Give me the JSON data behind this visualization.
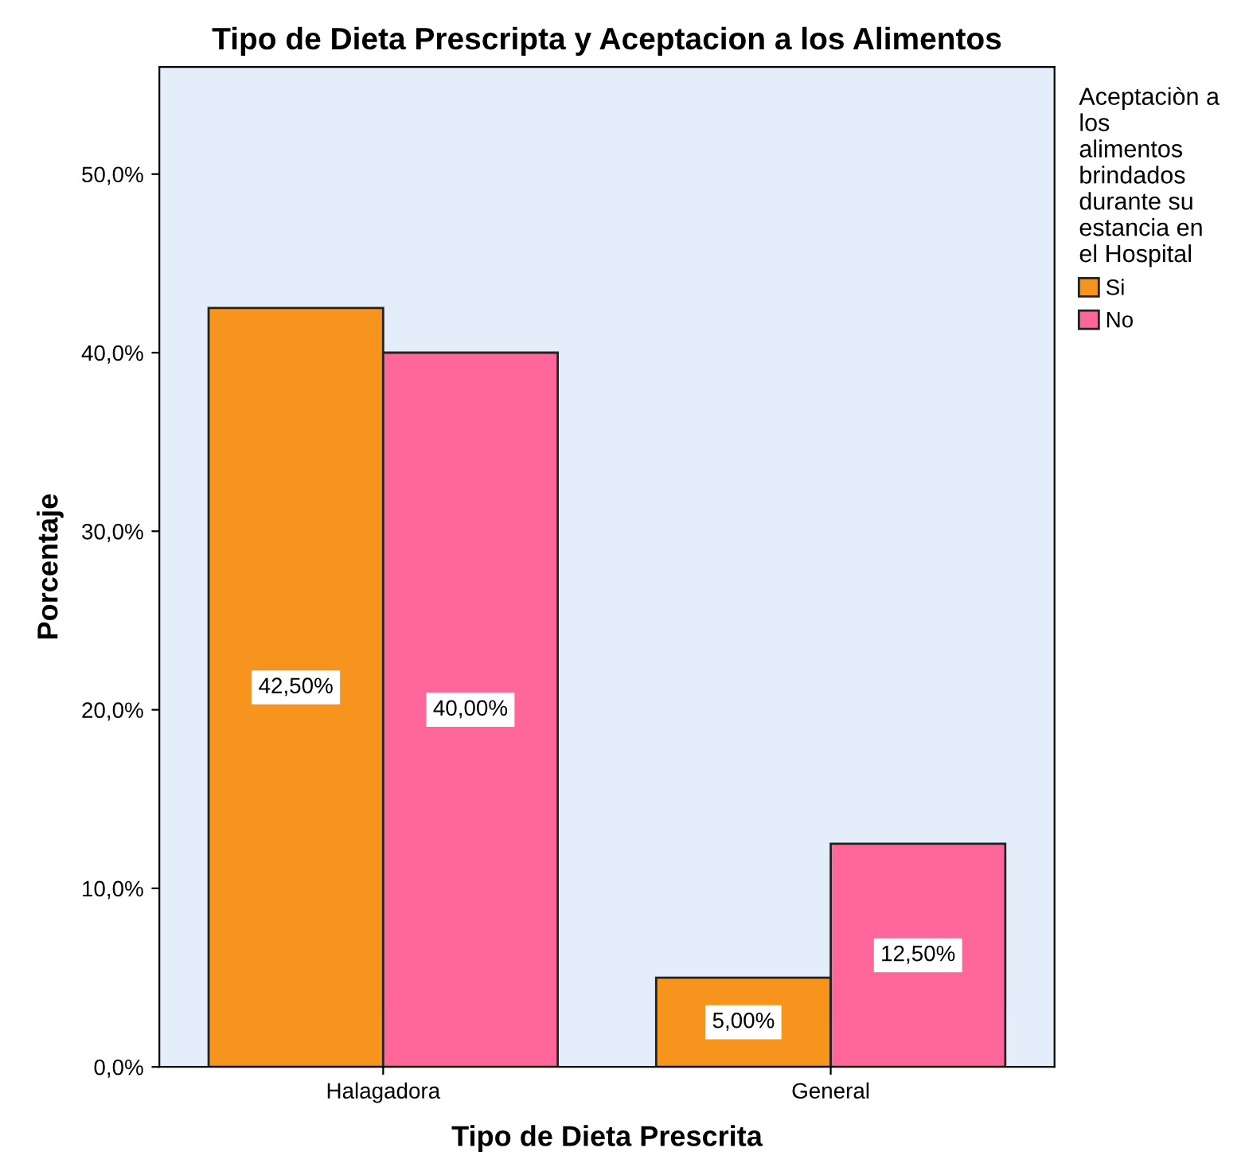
{
  "chart_data": {
    "type": "bar",
    "title": "Tipo de Dieta Prescripta y Aceptacion a los Alimentos",
    "xlabel": "Tipo de Dieta Prescrita",
    "ylabel": "Porcentaje",
    "legend_title": "Aceptaciòn a los alimentos brindados durante su estancia en el Hospital",
    "categories": [
      "Halagadora",
      "General"
    ],
    "series": [
      {
        "name": "Si",
        "color": "#f7941d",
        "values": [
          42.5,
          5.0
        ],
        "value_labels": [
          "42,50%",
          "5,00%"
        ]
      },
      {
        "name": "No",
        "color": "#ff6699",
        "values": [
          40.0,
          12.5
        ],
        "value_labels": [
          "40,00%",
          "12,50%"
        ]
      }
    ],
    "ylim": [
      0,
      56
    ],
    "yticks": [
      {
        "value": 0,
        "label": "0,0%"
      },
      {
        "value": 10,
        "label": "10,0%"
      },
      {
        "value": 20,
        "label": "20,0%"
      },
      {
        "value": 30,
        "label": "30,0%"
      },
      {
        "value": 40,
        "label": "40,0%"
      },
      {
        "value": 50,
        "label": "50,0%"
      }
    ],
    "grid": false,
    "legend": "top right"
  }
}
